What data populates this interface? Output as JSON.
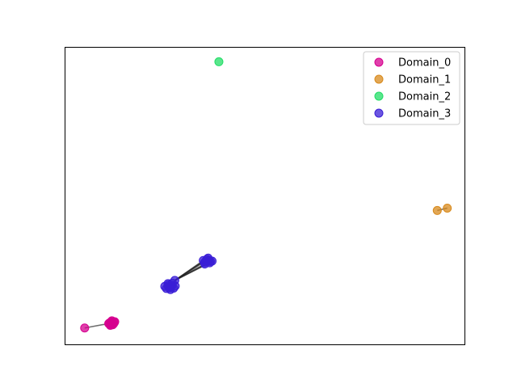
{
  "chart_data": {
    "type": "scatter",
    "title": "",
    "xlabel": "",
    "ylabel": "",
    "xlim": [
      0,
      100
    ],
    "ylim": [
      0,
      100
    ],
    "axis_ticks": false,
    "grid": false,
    "legend_position": "top-right",
    "series": [
      {
        "name": "Domain_0",
        "color": "#d6008f",
        "points": [
          [
            5.0,
            5.5
          ],
          [
            11.0,
            7.0
          ],
          [
            11.6,
            7.6
          ],
          [
            12.0,
            6.6
          ],
          [
            11.4,
            6.4
          ],
          [
            12.4,
            7.3
          ],
          [
            11.8,
            7.9
          ],
          [
            11.2,
            7.2
          ],
          [
            12.2,
            6.9
          ],
          [
            11.6,
            6.8
          ],
          [
            11.9,
            7.4
          ],
          [
            11.3,
            6.7
          ],
          [
            12.5,
            7.6
          ]
        ]
      },
      {
        "name": "Domain_1",
        "color": "#d88a1c",
        "points": [
          [
            93.0,
            45.0
          ],
          [
            95.5,
            45.8
          ]
        ]
      },
      {
        "name": "Domain_2",
        "color": "#22dd66",
        "points": [
          [
            38.5,
            95.0
          ]
        ]
      },
      {
        "name": "Domain_3",
        "color": "#3a1ed6",
        "points": [
          [
            25.0,
            19.5
          ],
          [
            26.2,
            19.0
          ],
          [
            26.8,
            19.8
          ],
          [
            25.8,
            20.4
          ],
          [
            26.4,
            18.4
          ],
          [
            27.6,
            19.6
          ],
          [
            25.4,
            18.8
          ],
          [
            26.9,
            20.6
          ],
          [
            27.2,
            18.9
          ],
          [
            25.9,
            19.4
          ],
          [
            26.5,
            19.2
          ],
          [
            26.0,
            20.0
          ],
          [
            27.5,
            21.5
          ],
          [
            34.6,
            28.2
          ],
          [
            35.5,
            28.6
          ],
          [
            36.2,
            27.4
          ],
          [
            35.0,
            27.0
          ],
          [
            36.8,
            28.0
          ],
          [
            35.8,
            29.0
          ],
          [
            35.2,
            28.0
          ],
          [
            36.4,
            27.9
          ],
          [
            34.9,
            27.5
          ],
          [
            36.0,
            28.3
          ]
        ]
      }
    ],
    "links": [
      [
        [
          5.0,
          5.5
        ],
        [
          11.0,
          7.0
        ]
      ],
      [
        [
          27.5,
          21.5
        ],
        [
          34.6,
          28.2
        ]
      ],
      [
        [
          27.5,
          21.5
        ],
        [
          35.5,
          28.6
        ]
      ],
      [
        [
          27.5,
          21.5
        ],
        [
          36.2,
          27.4
        ]
      ],
      [
        [
          27.5,
          21.5
        ],
        [
          35.0,
          27.0
        ]
      ],
      [
        [
          27.5,
          21.5
        ],
        [
          36.8,
          28.0
        ]
      ],
      [
        [
          27.5,
          21.5
        ],
        [
          35.8,
          29.0
        ]
      ],
      [
        [
          27.5,
          21.5
        ],
        [
          35.2,
          28.0
        ]
      ],
      [
        [
          26.5,
          19.2
        ],
        [
          27.5,
          21.5
        ]
      ],
      [
        [
          93.0,
          45.0
        ],
        [
          95.5,
          45.8
        ]
      ]
    ]
  }
}
